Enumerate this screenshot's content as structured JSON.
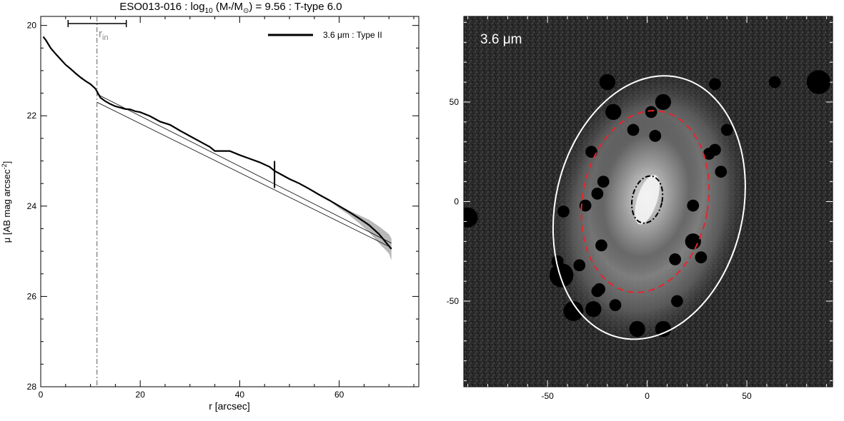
{
  "chart_data": [
    {
      "type": "line",
      "title": {
        "pre": "ESO013-016 : log",
        "sub10": "10",
        "mid": " (M",
        "star": "*",
        "slash": "/M",
        "sun": "⊙",
        "post": ") = 9.56 : T-type 6.0"
      },
      "xlabel": "r [arcsec]",
      "ylabel": {
        "main": "μ [AB mag arcsec",
        "exp": "-2",
        "close": "]"
      },
      "xlim": [
        0,
        76
      ],
      "ylim": [
        28,
        19.8
      ],
      "y_inverted": true,
      "xticks": [
        0,
        20,
        40,
        60
      ],
      "yticks": [
        20,
        22,
        24,
        26,
        28
      ],
      "legend": {
        "position": "top-right",
        "label": "3.6 μm : Type II"
      },
      "r_in_label": {
        "main": "r",
        "sub": "in"
      },
      "r_in": 11.3,
      "r_in_range": [
        5.5,
        17.2
      ],
      "r_break": 47,
      "series": [
        {
          "name": "3.6 μm : Type II",
          "x": [
            0.5,
            1,
            2,
            3,
            4,
            5,
            6,
            7,
            8,
            9,
            10,
            11,
            11.3,
            12,
            13,
            14,
            15,
            16,
            17,
            18,
            19,
            20,
            22,
            24,
            26,
            28,
            30,
            32,
            34,
            35,
            36,
            38,
            40,
            42,
            44,
            46,
            47,
            48,
            50,
            52,
            54,
            56,
            58,
            60,
            62,
            64,
            66,
            68,
            70.5
          ],
          "y": [
            20.25,
            20.32,
            20.5,
            20.63,
            20.75,
            20.87,
            20.96,
            21.06,
            21.15,
            21.23,
            21.3,
            21.4,
            21.46,
            21.6,
            21.68,
            21.74,
            21.79,
            21.82,
            21.85,
            21.86,
            21.9,
            21.92,
            22.01,
            22.13,
            22.2,
            22.33,
            22.45,
            22.57,
            22.69,
            22.78,
            22.78,
            22.78,
            22.87,
            22.95,
            23.03,
            23.13,
            23.22,
            23.28,
            23.4,
            23.5,
            23.62,
            23.75,
            23.87,
            24.0,
            24.13,
            24.27,
            24.42,
            24.62,
            24.95
          ]
        }
      ],
      "fits": [
        {
          "x": [
            11.3,
            70.5
          ],
          "y": [
            21.52,
            24.82
          ]
        },
        {
          "x": [
            11.3,
            70.5
          ],
          "y": [
            21.7,
            24.92
          ]
        }
      ],
      "uncertainty_band": {
        "x": [
          58,
          60,
          62,
          64,
          66,
          68,
          70,
          70.5
        ],
        "y_low": [
          23.86,
          23.98,
          24.1,
          24.2,
          24.3,
          24.45,
          24.62,
          24.72
        ],
        "y_high": [
          23.88,
          24.05,
          24.2,
          24.38,
          24.58,
          24.82,
          25.05,
          25.2
        ]
      }
    },
    {
      "type": "image",
      "label": "3.6 μm",
      "xlim": [
        -92,
        93
      ],
      "ylim": [
        -93,
        93
      ],
      "xticks": [
        -50,
        0,
        50
      ],
      "yticks": [
        -50,
        0,
        50
      ],
      "ellipses": [
        {
          "name": "outer",
          "cx": 1,
          "cy": -3,
          "rx": 47,
          "ry": 67,
          "angle": 13,
          "color": "#ffffff",
          "style": "solid"
        },
        {
          "name": "break",
          "cx": -1,
          "cy": 0,
          "rx": 31.5,
          "ry": 46,
          "angle": 10,
          "color": "#e8242c",
          "style": "dashed"
        },
        {
          "name": "inner",
          "cx": 0,
          "cy": 1,
          "rx": 7.5,
          "ry": 12,
          "angle": 12,
          "color": "#000000",
          "style": "dashdot"
        }
      ],
      "masked_sources": [
        [
          -17,
          45,
          4
        ],
        [
          2,
          45,
          3
        ],
        [
          8,
          50,
          4
        ],
        [
          -7,
          36,
          3
        ],
        [
          4,
          33,
          3
        ],
        [
          -90,
          -8,
          5
        ],
        [
          -22,
          10,
          3
        ],
        [
          -25,
          4,
          3
        ],
        [
          -23,
          -22,
          3
        ],
        [
          23,
          -20,
          4
        ],
        [
          27,
          -28,
          3
        ],
        [
          -43,
          -37,
          6
        ],
        [
          -37,
          -55,
          5
        ],
        [
          -27,
          -54,
          4
        ],
        [
          -16,
          -52,
          3
        ],
        [
          -5,
          -64,
          4
        ],
        [
          8,
          -64,
          4
        ],
        [
          -42,
          -5,
          3
        ],
        [
          -34,
          -32,
          3
        ],
        [
          -24,
          -44,
          3
        ],
        [
          -45,
          -30,
          3
        ],
        [
          31,
          24,
          3
        ],
        [
          34,
          26,
          3
        ],
        [
          23,
          -2,
          3
        ],
        [
          -31,
          -2,
          3
        ],
        [
          37,
          15,
          3
        ],
        [
          86,
          60,
          6
        ],
        [
          64,
          60,
          3
        ],
        [
          -20,
          60,
          4
        ],
        [
          34,
          59,
          3
        ],
        [
          40,
          36,
          3
        ],
        [
          14,
          -29,
          3
        ],
        [
          15,
          -50,
          3
        ],
        [
          -25,
          -45,
          3
        ],
        [
          -28,
          25,
          3
        ]
      ]
    }
  ]
}
